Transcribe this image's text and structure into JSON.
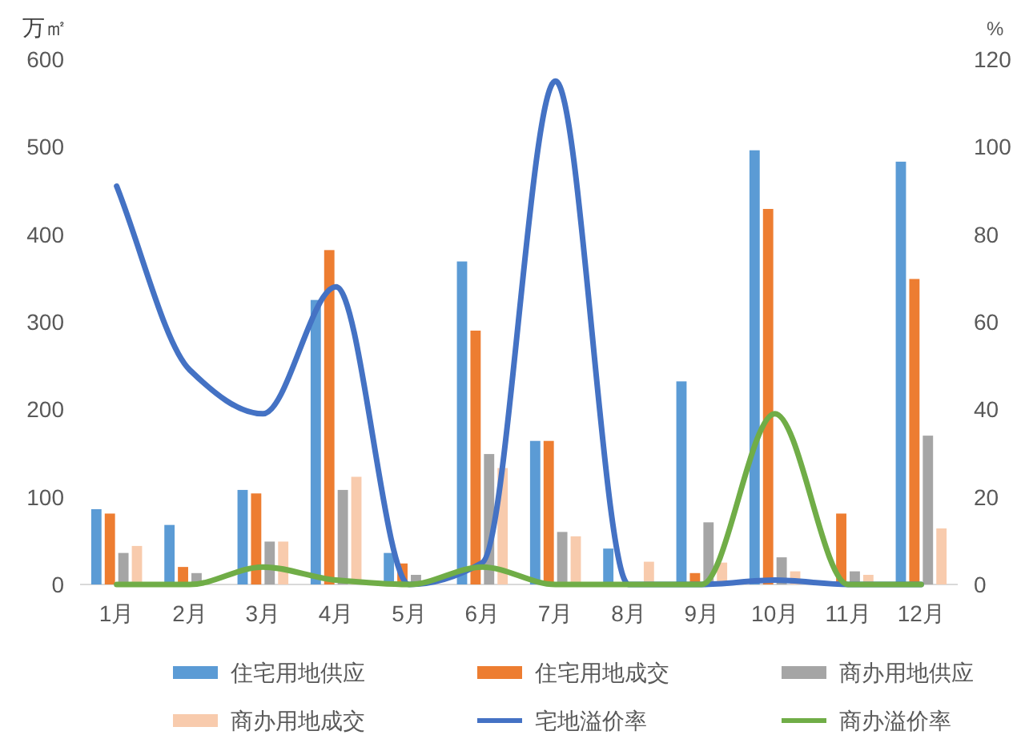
{
  "chart_data": {
    "type": "bar",
    "ylabel": "万㎡",
    "y2label": "%",
    "categories": [
      "1月",
      "2月",
      "3月",
      "4月",
      "5月",
      "6月",
      "7月",
      "8月",
      "9月",
      "10月",
      "11月",
      "12月"
    ],
    "ylim": [
      0,
      600
    ],
    "yticks": [
      0,
      100,
      200,
      300,
      400,
      500,
      600
    ],
    "y2lim": [
      0,
      120
    ],
    "y2ticks": [
      0,
      20,
      40,
      60,
      80,
      100,
      120
    ],
    "legend": "bottom",
    "series": [
      {
        "name": "住宅用地供应",
        "color": "#5b9bd5",
        "values": [
          86,
          68,
          108,
          325,
          36,
          369,
          164,
          41,
          232,
          496,
          0,
          483
        ]
      },
      {
        "name": "住宅用地成交",
        "color": "#ed7d31",
        "values": [
          81,
          20,
          104,
          382,
          24,
          290,
          164,
          0,
          13,
          429,
          81,
          349
        ]
      },
      {
        "name": "商办用地供应",
        "color": "#a5a5a5",
        "values": [
          36,
          13,
          49,
          108,
          11,
          149,
          60,
          0,
          71,
          31,
          15,
          170
        ]
      },
      {
        "name": "商办用地成交",
        "color": "#f8cbad",
        "values": [
          44,
          0,
          49,
          123,
          0,
          133,
          55,
          26,
          25,
          15,
          11,
          64
        ]
      },
      {
        "name": "宅地溢价率",
        "type": "line",
        "axis": "y2",
        "color": "#4472c4",
        "values": [
          91,
          49,
          39,
          68,
          0,
          5,
          115,
          0,
          0,
          1,
          0,
          0
        ]
      },
      {
        "name": "商办溢价率",
        "type": "line",
        "axis": "y2",
        "color": "#70ad47",
        "values": [
          0,
          0,
          4,
          1,
          0,
          4,
          0,
          0,
          0,
          39,
          0,
          0
        ]
      }
    ]
  }
}
